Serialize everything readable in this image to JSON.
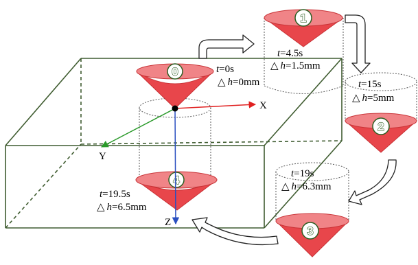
{
  "axes": {
    "x": "X",
    "y": "Y",
    "z": "Z"
  },
  "states": [
    {
      "id": "0",
      "t": "=0s",
      "dh": "=0mm"
    },
    {
      "id": "1",
      "t": "=4.5s",
      "dh": "=1.5mm"
    },
    {
      "id": "2",
      "t": "=15s",
      "dh": "=5mm"
    },
    {
      "id": "3",
      "t": "=19s",
      "dh": "=6.3mm"
    },
    {
      "id": "4",
      "t": "=19.5s",
      "dh": "=6.5mm"
    }
  ],
  "symbols": {
    "t": "t",
    "delta": "△",
    "h": "h"
  },
  "colors": {
    "cone": "#e8464b",
    "box": "#3f5c30",
    "x_axis": "#e02020",
    "y_axis": "#2a9a2a",
    "z_axis": "#2a4fc0"
  }
}
